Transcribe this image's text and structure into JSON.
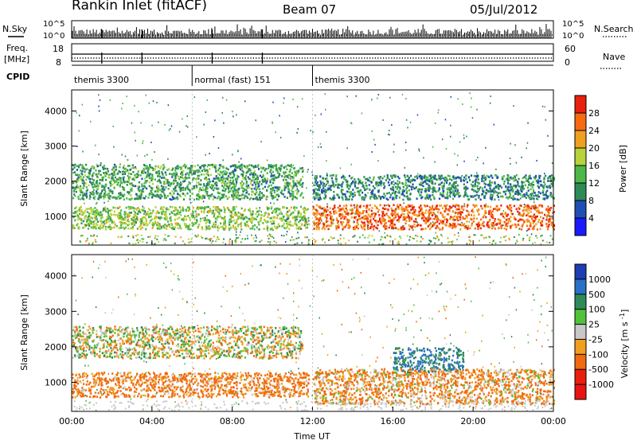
{
  "header": {
    "station": "Rankin Inlet (fitACF)",
    "beam": "Beam 07",
    "date": "05/Jul/2012"
  },
  "top_panel": {
    "nsky_label": "N.Sky",
    "nsky_ticks": [
      "10^5",
      "10^0"
    ],
    "nsearch_label": "N.Search",
    "nsearch_ticks": [
      "10^5",
      "10^0"
    ],
    "freq_label": "Freq.",
    "freq_unit": "[MHz]",
    "freq_ticks": [
      "18",
      "8"
    ],
    "nave_label": "Nave",
    "nave_ticks": [
      "60",
      "0"
    ],
    "cpid_label": "CPID",
    "cpid_segments": [
      {
        "start_h": 0,
        "end_h": 6,
        "label": "themis 3300"
      },
      {
        "start_h": 6,
        "end_h": 12,
        "label": "normal (fast) 151"
      },
      {
        "start_h": 12,
        "end_h": 24,
        "label": "themis 3300"
      }
    ]
  },
  "chart_data": [
    {
      "type": "heatmap",
      "title": "",
      "xlabel": "",
      "ylabel": "Slant Range [km]",
      "xlim": [
        "00:00",
        "24:00"
      ],
      "ylim": [
        180,
        4600
      ],
      "yticks": [
        "1000",
        "2000",
        "3000",
        "4000"
      ],
      "colorbar": {
        "label": "Power [dB]",
        "ticks": [
          "4",
          "8",
          "12",
          "16",
          "20",
          "24",
          "28"
        ],
        "colors": [
          "#1a1aff",
          "#1e4fb4",
          "#2e8a57",
          "#4db848",
          "#b8d23c",
          "#f0a01e",
          "#f86a10",
          "#e8200e"
        ]
      },
      "features": [
        {
          "x_start_h": 0.0,
          "x_end_h": 11.5,
          "range_km": [
            1500,
            2500
          ],
          "level_db": 12
        },
        {
          "x_start_h": 0.0,
          "x_end_h": 11.8,
          "range_km": [
            650,
            1300
          ],
          "level_db": 16
        },
        {
          "x_start_h": 12.0,
          "x_end_h": 24.0,
          "range_km": [
            650,
            1350
          ],
          "level_db": 26
        },
        {
          "x_start_h": 12.0,
          "x_end_h": 24.0,
          "range_km": [
            1500,
            2200
          ],
          "level_db": 10
        }
      ]
    },
    {
      "type": "heatmap",
      "title": "",
      "xlabel": "Time UT",
      "ylabel": "Slant Range [km]",
      "xlim": [
        "00:00",
        "24:00"
      ],
      "ylim": [
        180,
        4600
      ],
      "xticks": [
        "00:00",
        "04:00",
        "08:00",
        "12:00",
        "16:00",
        "20:00",
        "00:00"
      ],
      "yticks": [
        "1000",
        "2000",
        "3000",
        "4000"
      ],
      "colorbar": {
        "label": "Velocity [m s^-1]",
        "ticks": [
          "1000",
          "500",
          "100",
          "25",
          "-25",
          "-100",
          "-500",
          "-1000"
        ],
        "colors": [
          "#1e3cb4",
          "#2a6fc8",
          "#2e8a57",
          "#52c23a",
          "#c8c8c8",
          "#f0a01e",
          "#f06a10",
          "#e8200e",
          "#e81414"
        ]
      },
      "features": [
        {
          "x_start_h": 0.0,
          "x_end_h": 11.5,
          "range_km": [
            1700,
            2600
          ],
          "velocity": 0
        },
        {
          "x_start_h": 0.0,
          "x_end_h": 11.8,
          "range_km": [
            600,
            1300
          ],
          "velocity": -150
        },
        {
          "x_start_h": 16.0,
          "x_end_h": 19.5,
          "range_km": [
            1300,
            2000
          ],
          "velocity": 500
        },
        {
          "x_start_h": 12.0,
          "x_end_h": 24.0,
          "range_km": [
            400,
            1400
          ],
          "velocity": -100
        }
      ]
    }
  ]
}
